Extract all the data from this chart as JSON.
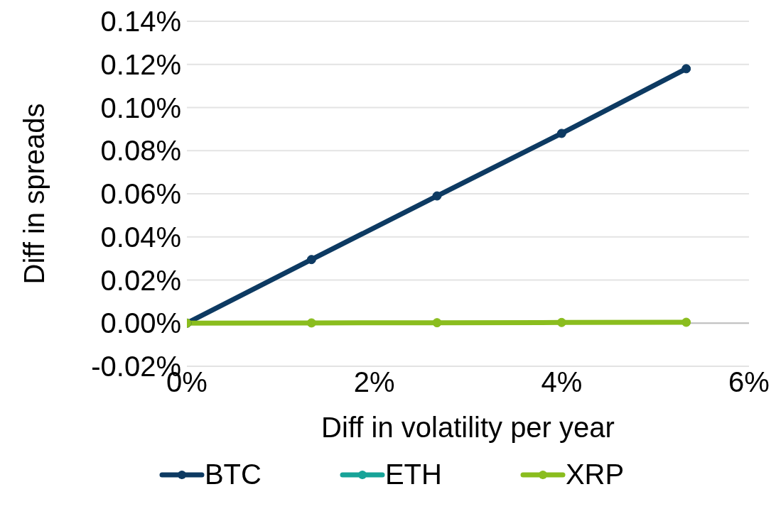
{
  "chart_data": {
    "type": "line",
    "xlabel": "Diff in volatility per year",
    "ylabel": "Diff in spreads",
    "x": [
      0,
      1.33,
      2.67,
      4,
      5.33
    ],
    "series": [
      {
        "name": "BTC",
        "color": "#0d3a62",
        "values": [
          0,
          0.0295,
          0.059,
          0.088,
          0.118
        ]
      },
      {
        "name": "ETH",
        "color": "#17a398",
        "values": [
          null,
          null,
          null,
          null,
          null
        ]
      },
      {
        "name": "XRP",
        "color": "#8abd1e",
        "values": [
          0,
          0.0001,
          0.0002,
          0.0003,
          0.0004
        ]
      }
    ],
    "xlim": [
      0,
      6
    ],
    "xticks": [
      {
        "value": 0,
        "label": "0%"
      },
      {
        "value": 2,
        "label": "2%"
      },
      {
        "value": 4,
        "label": "4%"
      },
      {
        "value": 6,
        "label": "6%"
      }
    ],
    "ylim": [
      -0.02,
      0.14
    ],
    "yticks": [
      {
        "value": -0.02,
        "label": "-0.02%"
      },
      {
        "value": 0,
        "label": "0.00%"
      },
      {
        "value": 0.02,
        "label": "0.02%"
      },
      {
        "value": 0.04,
        "label": "0.04%"
      },
      {
        "value": 0.06,
        "label": "0.06%"
      },
      {
        "value": 0.08,
        "label": "0.08%"
      },
      {
        "value": 0.1,
        "label": "0.10%"
      },
      {
        "value": 0.12,
        "label": "0.12%"
      },
      {
        "value": 0.14,
        "label": "0.14%"
      }
    ],
    "grid": "y",
    "legend": "bottom",
    "marker": "circle",
    "line_style": "solid"
  }
}
